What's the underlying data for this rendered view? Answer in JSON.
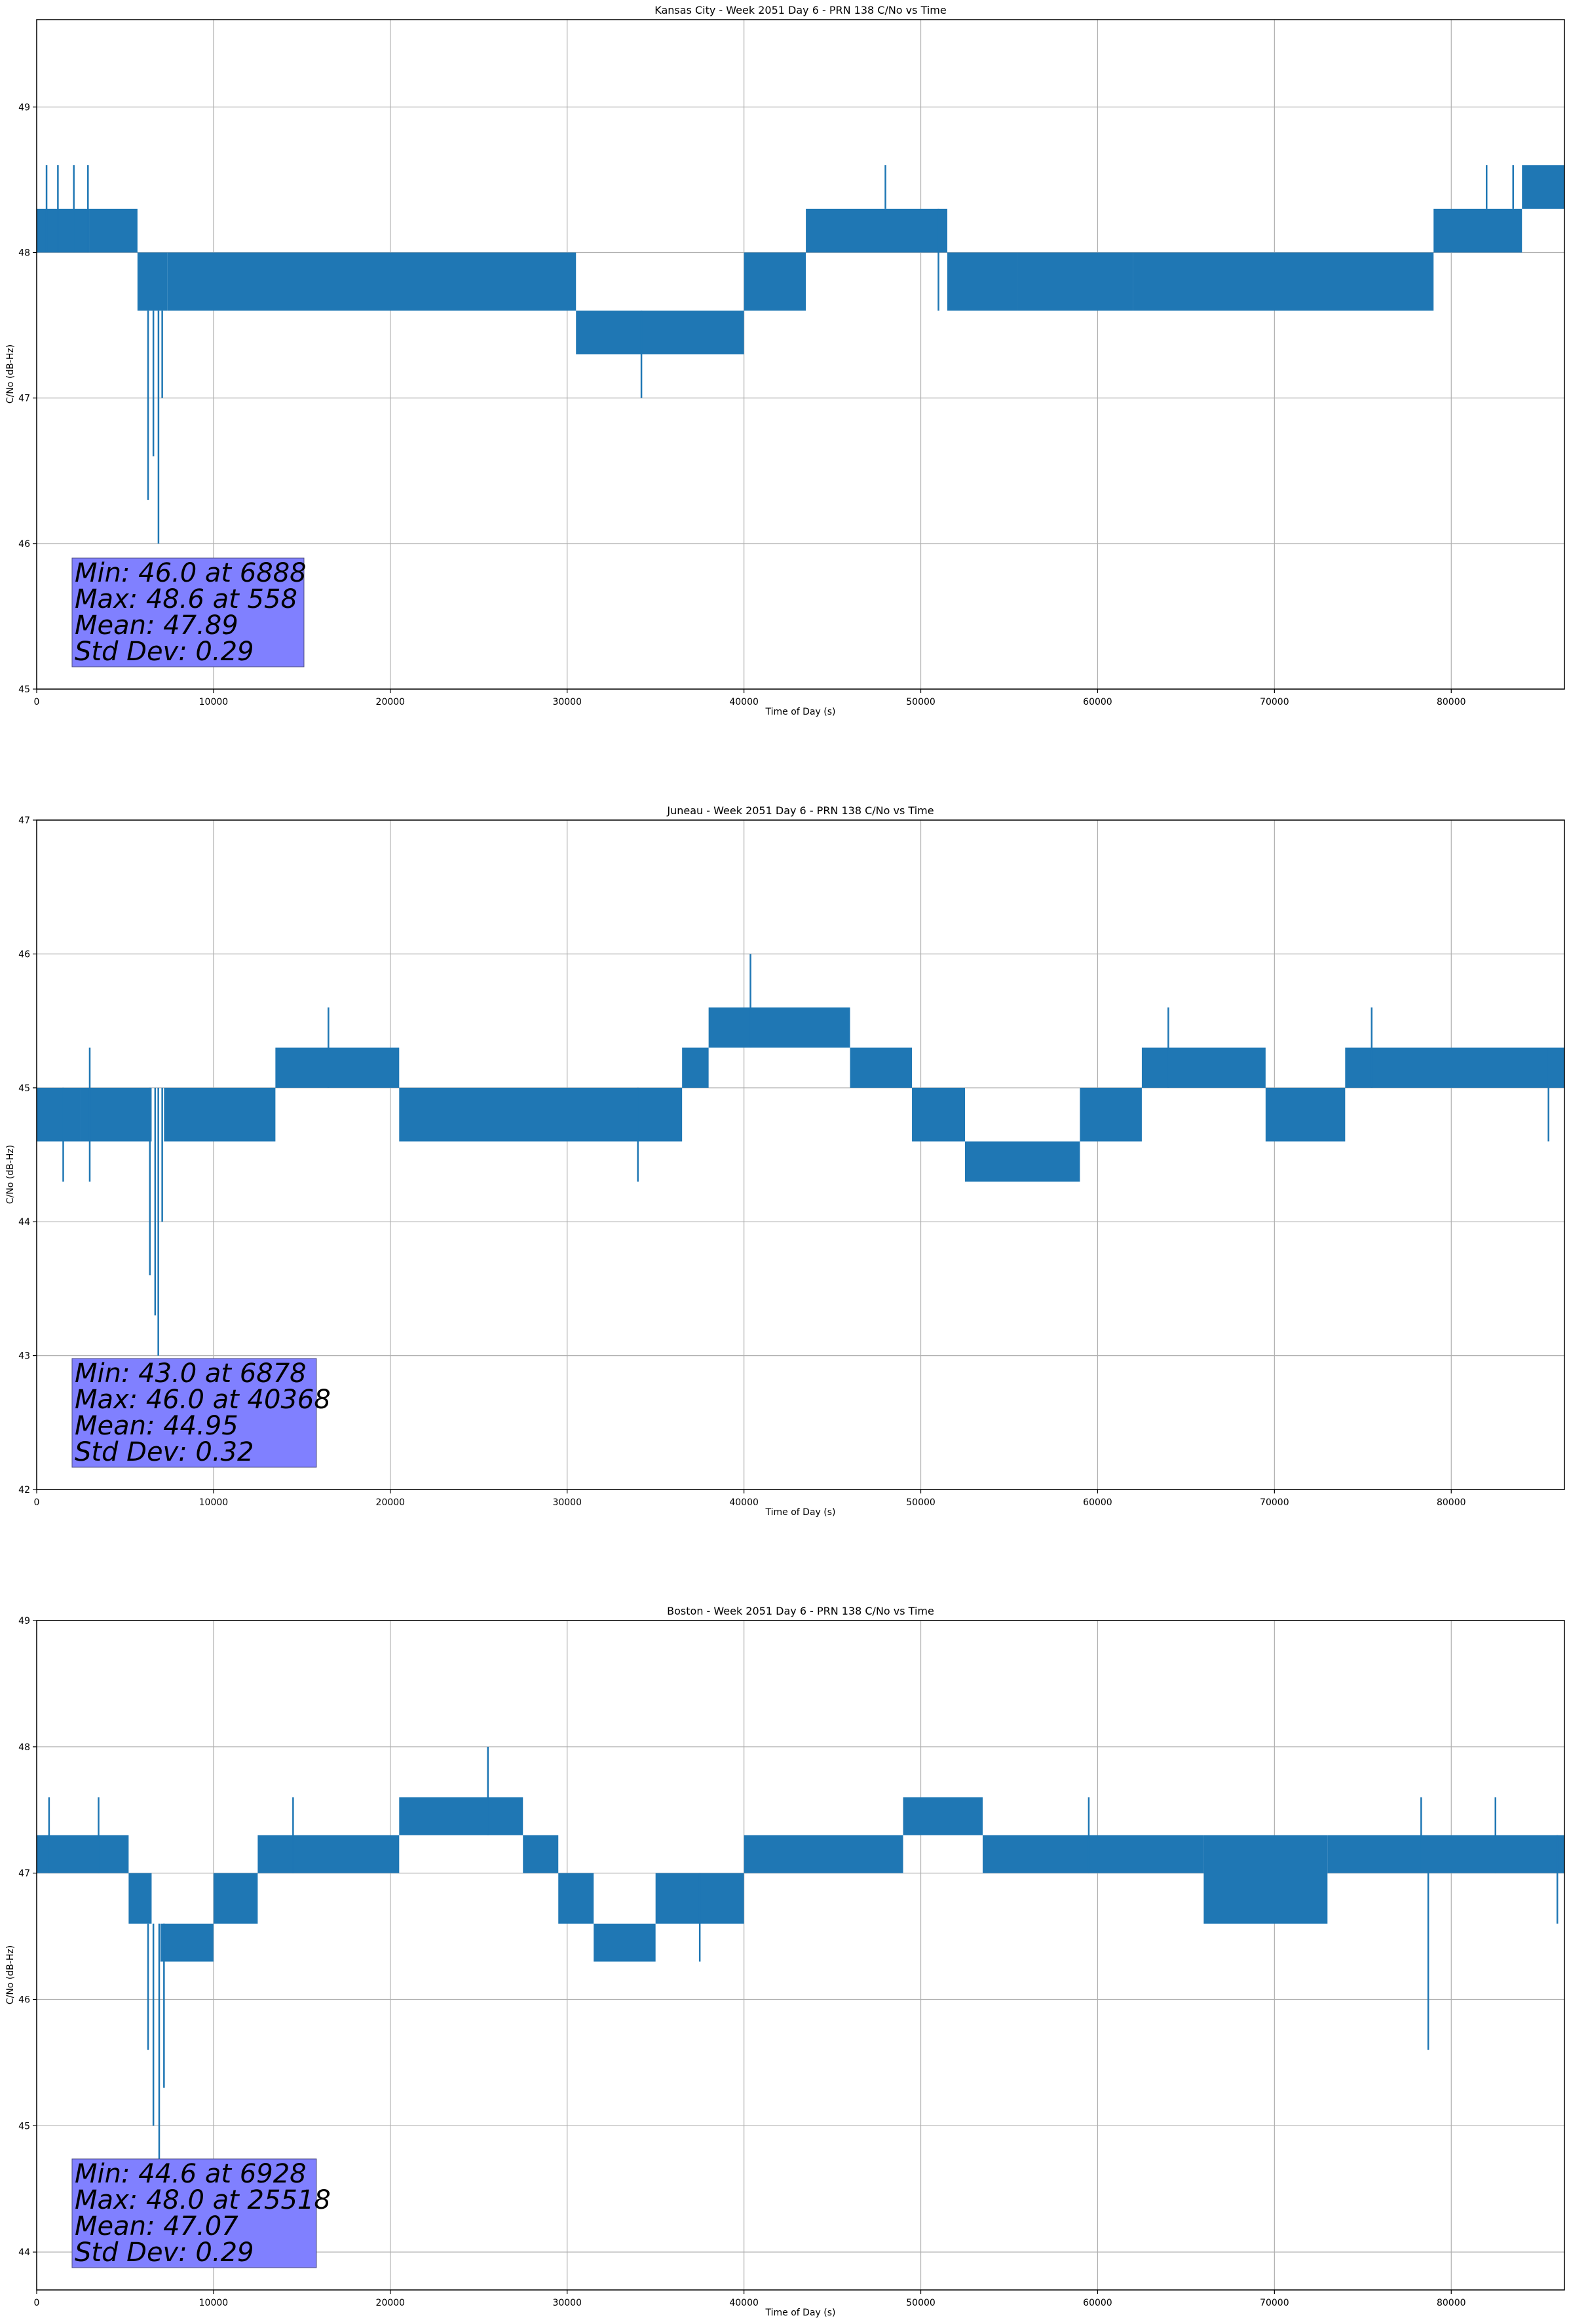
{
  "chart_data": [
    {
      "type": "line",
      "title": "Kansas City - Week 2051 Day 6 - PRN 138 C/No vs Time",
      "xlabel": "Time of Day (s)",
      "ylabel": "C/No (dB-Hz)",
      "xlim": [
        0,
        86400
      ],
      "ylim": [
        45,
        49.6
      ],
      "xticks": [
        0,
        10000,
        20000,
        30000,
        40000,
        50000,
        60000,
        70000,
        80000
      ],
      "yticks": [
        45,
        46,
        47,
        48,
        49
      ],
      "grid": true,
      "color": "#1f77b4",
      "stats": [
        "Min: 46.0 at 6888",
        "Max: 48.6 at 558",
        "Mean: 47.89",
        "Std Dev: 0.29"
      ],
      "stats_box_color": "#8080ff",
      "segments": [
        {
          "x": [
            0,
            3000
          ],
          "lo": 48.0,
          "hi": 48.3
        },
        {
          "x": [
            3000,
            5700
          ],
          "lo": 48.0,
          "hi": 48.3
        },
        {
          "x": [
            5700,
            7400
          ],
          "lo": 47.6,
          "hi": 48.0
        },
        {
          "x": [
            7400,
            30500
          ],
          "lo": 47.6,
          "hi": 48.0
        },
        {
          "x": [
            30500,
            40000
          ],
          "lo": 47.3,
          "hi": 47.6
        },
        {
          "x": [
            40000,
            43500
          ],
          "lo": 47.6,
          "hi": 48.0
        },
        {
          "x": [
            43500,
            51500
          ],
          "lo": 48.0,
          "hi": 48.3
        },
        {
          "x": [
            51500,
            55500
          ],
          "lo": 47.6,
          "hi": 48.0
        },
        {
          "x": [
            55500,
            62000
          ],
          "lo": 47.6,
          "hi": 48.0
        },
        {
          "x": [
            62000,
            79000
          ],
          "lo": 47.6,
          "hi": 48.0
        },
        {
          "x": [
            79000,
            84000
          ],
          "lo": 48.0,
          "hi": 48.3
        },
        {
          "x": [
            84000,
            86400
          ],
          "lo": 48.3,
          "hi": 48.6
        }
      ],
      "spikes": [
        {
          "x": 558,
          "lo": 48.0,
          "hi": 48.6
        },
        {
          "x": 1200,
          "lo": 48.0,
          "hi": 48.6
        },
        {
          "x": 2100,
          "lo": 48.0,
          "hi": 48.6
        },
        {
          "x": 2900,
          "lo": 48.0,
          "hi": 48.6
        },
        {
          "x": 6300,
          "lo": 46.3,
          "hi": 47.6
        },
        {
          "x": 6600,
          "lo": 46.6,
          "hi": 47.6
        },
        {
          "x": 6888,
          "lo": 46.0,
          "hi": 47.6
        },
        {
          "x": 7100,
          "lo": 47.0,
          "hi": 47.6
        },
        {
          "x": 34200,
          "lo": 47.0,
          "hi": 47.6
        },
        {
          "x": 48000,
          "lo": 48.3,
          "hi": 48.6
        },
        {
          "x": 51000,
          "lo": 47.6,
          "hi": 48.3
        },
        {
          "x": 82000,
          "lo": 48.3,
          "hi": 48.6
        },
        {
          "x": 83500,
          "lo": 48.3,
          "hi": 48.6
        }
      ]
    },
    {
      "type": "line",
      "title": "Juneau - Week 2051 Day 6 - PRN 138 C/No vs Time",
      "xlabel": "Time of Day (s)",
      "ylabel": "C/No (dB-Hz)",
      "xlim": [
        0,
        86400
      ],
      "ylim": [
        42,
        47
      ],
      "xticks": [
        0,
        10000,
        20000,
        30000,
        40000,
        50000,
        60000,
        70000,
        80000
      ],
      "yticks": [
        42,
        43,
        44,
        45,
        46,
        47
      ],
      "grid": true,
      "color": "#1f77b4",
      "stats": [
        "Min: 43.0 at 6878",
        "Max: 46.0 at 40368",
        "Mean: 44.95",
        "Std Dev: 0.32"
      ],
      "stats_box_color": "#8080ff",
      "segments": [
        {
          "x": [
            0,
            2500
          ],
          "lo": 44.6,
          "hi": 45.0
        },
        {
          "x": [
            2500,
            6500
          ],
          "lo": 44.6,
          "hi": 45.0
        },
        {
          "x": [
            7200,
            13500
          ],
          "lo": 44.6,
          "hi": 45.0
        },
        {
          "x": [
            13500,
            20500
          ],
          "lo": 45.0,
          "hi": 45.3
        },
        {
          "x": [
            20500,
            36500
          ],
          "lo": 44.6,
          "hi": 45.0
        },
        {
          "x": [
            36500,
            38000
          ],
          "lo": 45.0,
          "hi": 45.3
        },
        {
          "x": [
            38000,
            46000
          ],
          "lo": 45.3,
          "hi": 45.6
        },
        {
          "x": [
            46000,
            49500
          ],
          "lo": 45.0,
          "hi": 45.3
        },
        {
          "x": [
            49500,
            52500
          ],
          "lo": 44.6,
          "hi": 45.0
        },
        {
          "x": [
            52500,
            59000
          ],
          "lo": 44.3,
          "hi": 44.6
        },
        {
          "x": [
            59000,
            62500
          ],
          "lo": 44.6,
          "hi": 45.0
        },
        {
          "x": [
            62500,
            69500
          ],
          "lo": 45.0,
          "hi": 45.3
        },
        {
          "x": [
            69500,
            74000
          ],
          "lo": 44.6,
          "hi": 45.0
        },
        {
          "x": [
            74000,
            86400
          ],
          "lo": 45.0,
          "hi": 45.3
        }
      ],
      "spikes": [
        {
          "x": 1500,
          "lo": 44.3,
          "hi": 45.0
        },
        {
          "x": 3000,
          "lo": 44.3,
          "hi": 45.3
        },
        {
          "x": 6400,
          "lo": 43.6,
          "hi": 45.0
        },
        {
          "x": 6700,
          "lo": 43.3,
          "hi": 45.0
        },
        {
          "x": 6878,
          "lo": 43.0,
          "hi": 45.0
        },
        {
          "x": 7100,
          "lo": 44.0,
          "hi": 45.0
        },
        {
          "x": 16500,
          "lo": 45.0,
          "hi": 45.6
        },
        {
          "x": 34000,
          "lo": 44.3,
          "hi": 45.0
        },
        {
          "x": 40368,
          "lo": 45.3,
          "hi": 46.0
        },
        {
          "x": 64000,
          "lo": 45.0,
          "hi": 45.6
        },
        {
          "x": 75500,
          "lo": 45.0,
          "hi": 45.6
        },
        {
          "x": 85500,
          "lo": 44.6,
          "hi": 45.3
        }
      ]
    },
    {
      "type": "line",
      "title": "Boston - Week 2051 Day 6 - PRN 138 C/No vs Time",
      "xlabel": "Time of Day (s)",
      "ylabel": "C/No (dB-Hz)",
      "xlim": [
        0,
        86400
      ],
      "ylim": [
        43.7,
        49
      ],
      "xticks": [
        0,
        10000,
        20000,
        30000,
        40000,
        50000,
        60000,
        70000,
        80000
      ],
      "yticks": [
        44,
        45,
        46,
        47,
        48,
        49
      ],
      "grid": true,
      "color": "#1f77b4",
      "stats": [
        "Min: 44.6 at 6928",
        "Max: 48.0 at 25518",
        "Mean: 47.07",
        "Std Dev: 0.29"
      ],
      "stats_box_color": "#8080ff",
      "segments": [
        {
          "x": [
            0,
            5200
          ],
          "lo": 47.0,
          "hi": 47.3
        },
        {
          "x": [
            5200,
            6500
          ],
          "lo": 46.6,
          "hi": 47.0
        },
        {
          "x": [
            7000,
            10000
          ],
          "lo": 46.3,
          "hi": 46.6
        },
        {
          "x": [
            10000,
            12500
          ],
          "lo": 46.6,
          "hi": 47.0
        },
        {
          "x": [
            12500,
            20500
          ],
          "lo": 47.0,
          "hi": 47.3
        },
        {
          "x": [
            20500,
            27500
          ],
          "lo": 47.3,
          "hi": 47.6
        },
        {
          "x": [
            27500,
            29500
          ],
          "lo": 47.0,
          "hi": 47.3
        },
        {
          "x": [
            29500,
            31500
          ],
          "lo": 46.6,
          "hi": 47.0
        },
        {
          "x": [
            31500,
            35000
          ],
          "lo": 46.3,
          "hi": 46.6
        },
        {
          "x": [
            35000,
            40000
          ],
          "lo": 46.6,
          "hi": 47.0
        },
        {
          "x": [
            40000,
            49000
          ],
          "lo": 47.0,
          "hi": 47.3
        },
        {
          "x": [
            49000,
            53500
          ],
          "lo": 47.3,
          "hi": 47.6
        },
        {
          "x": [
            53500,
            66000
          ],
          "lo": 47.0,
          "hi": 47.3
        },
        {
          "x": [
            66000,
            73000
          ],
          "lo": 46.6,
          "hi": 47.3
        },
        {
          "x": [
            73000,
            86400
          ],
          "lo": 47.0,
          "hi": 47.3
        }
      ],
      "spikes": [
        {
          "x": 700,
          "lo": 47.0,
          "hi": 47.6
        },
        {
          "x": 3500,
          "lo": 47.0,
          "hi": 47.6
        },
        {
          "x": 6300,
          "lo": 45.6,
          "hi": 46.6
        },
        {
          "x": 6600,
          "lo": 45.0,
          "hi": 46.6
        },
        {
          "x": 6928,
          "lo": 44.6,
          "hi": 46.6
        },
        {
          "x": 7200,
          "lo": 45.3,
          "hi": 46.6
        },
        {
          "x": 14500,
          "lo": 47.0,
          "hi": 47.6
        },
        {
          "x": 25518,
          "lo": 47.3,
          "hi": 48.0
        },
        {
          "x": 37500,
          "lo": 46.3,
          "hi": 47.0
        },
        {
          "x": 59500,
          "lo": 47.0,
          "hi": 47.6
        },
        {
          "x": 78700,
          "lo": 45.6,
          "hi": 47.0
        },
        {
          "x": 78300,
          "lo": 47.0,
          "hi": 47.6
        },
        {
          "x": 82500,
          "lo": 47.0,
          "hi": 47.6
        },
        {
          "x": 86000,
          "lo": 46.6,
          "hi": 47.3
        }
      ]
    }
  ]
}
